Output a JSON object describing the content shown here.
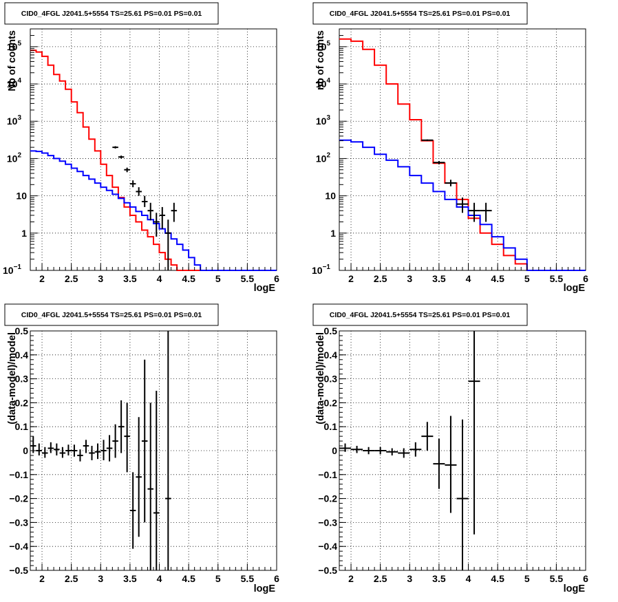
{
  "chart_data": [
    {
      "type": "line",
      "title": "CID0_4FGL J2041.5+5554 TS=25.61 PS=0.01 PS=0.01",
      "xlabel": "logE",
      "ylabel": "Nb of counts",
      "xlim": [
        1.8,
        6.0
      ],
      "ylim": [
        0.1,
        300000
      ],
      "yscale": "log",
      "grid": true,
      "xticks": [
        "2",
        "2.5",
        "3",
        "3.5",
        "4",
        "4.5",
        "5",
        "5.5",
        "6"
      ],
      "yticks": [
        {
          "base": "10",
          "exp": "−1"
        },
        {
          "base": "1",
          "exp": ""
        },
        {
          "base": "10",
          "exp": ""
        },
        {
          "base": "10",
          "exp": "2"
        },
        {
          "base": "10",
          "exp": "3"
        },
        {
          "base": "10",
          "exp": "4"
        },
        {
          "base": "10",
          "exp": "5"
        }
      ],
      "bin_width": 0.1,
      "series": [
        {
          "color": "#ff0000",
          "x": [
            1.85,
            1.95,
            2.05,
            2.15,
            2.25,
            2.35,
            2.45,
            2.55,
            2.65,
            2.75,
            2.85,
            2.95,
            3.05,
            3.15,
            3.25,
            3.35,
            3.45,
            3.55,
            3.65,
            3.75,
            3.85,
            3.95,
            4.05,
            4.15,
            4.25,
            4.35,
            4.45,
            4.55,
            4.65,
            4.75,
            4.85,
            4.95,
            5.05,
            5.15,
            5.25,
            5.35,
            5.45,
            5.55,
            5.65,
            5.75,
            5.85,
            5.95
          ],
          "values": [
            80000,
            72000,
            55000,
            32000,
            18000,
            12000,
            7200,
            3300,
            1700,
            700,
            330,
            160,
            70,
            35,
            17,
            9,
            5,
            3,
            2,
            1.2,
            0.8,
            0.5,
            0.3,
            0.2,
            0.14,
            0.1,
            0.1,
            0.1,
            0.1,
            0.1,
            0.1,
            0.1,
            0.1,
            0.1,
            0.1,
            0.1,
            0.1,
            0.1,
            0.1,
            0.1,
            0.1,
            0.1
          ]
        },
        {
          "color": "#0000ff",
          "x": [
            1.85,
            1.95,
            2.05,
            2.15,
            2.25,
            2.35,
            2.45,
            2.55,
            2.65,
            2.75,
            2.85,
            2.95,
            3.05,
            3.15,
            3.25,
            3.35,
            3.45,
            3.55,
            3.65,
            3.75,
            3.85,
            3.95,
            4.05,
            4.15,
            4.25,
            4.35,
            4.45,
            4.55,
            4.65,
            4.75,
            4.85,
            4.95,
            5.05,
            5.15,
            5.25,
            5.35,
            5.45,
            5.55,
            5.65,
            5.75,
            5.85,
            5.95
          ],
          "values": [
            160,
            155,
            140,
            120,
            100,
            85,
            70,
            55,
            45,
            35,
            28,
            22,
            17,
            14,
            11,
            8.5,
            6.5,
            5,
            3.8,
            3,
            2.3,
            1.8,
            1.3,
            1,
            0.7,
            0.5,
            0.35,
            0.22,
            0.14,
            0.1,
            0.1,
            0.1,
            0.1,
            0.1,
            0.1,
            0.1,
            0.1,
            0.1,
            0.1,
            0.1,
            0.1,
            0.1
          ]
        }
      ],
      "points": [
        {
          "x": 3.25,
          "y": 200,
          "xerr": 0.05,
          "ylo": 186,
          "yhi": 214
        },
        {
          "x": 3.35,
          "y": 110,
          "xerr": 0.05,
          "ylo": 100,
          "yhi": 120
        },
        {
          "x": 3.45,
          "y": 50,
          "xerr": 0.05,
          "ylo": 43,
          "yhi": 57
        },
        {
          "x": 3.55,
          "y": 21,
          "xerr": 0.05,
          "ylo": 17,
          "yhi": 26
        },
        {
          "x": 3.65,
          "y": 13,
          "xerr": 0.05,
          "ylo": 10,
          "yhi": 17
        },
        {
          "x": 3.75,
          "y": 7,
          "xerr": 0.05,
          "ylo": 5,
          "yhi": 10
        },
        {
          "x": 3.85,
          "y": 4,
          "xerr": 0.05,
          "ylo": 2.2,
          "yhi": 6.5
        },
        {
          "x": 3.95,
          "y": 2,
          "xerr": 0.05,
          "ylo": 0.8,
          "yhi": 3.5
        },
        {
          "x": 4.05,
          "y": 3,
          "xerr": 0.05,
          "ylo": 1.3,
          "yhi": 5
        },
        {
          "x": 4.15,
          "y": 1,
          "xerr": 0.05,
          "ylo": 0.1,
          "yhi": 2.3
        },
        {
          "x": 4.25,
          "y": 4,
          "xerr": 0.05,
          "ylo": 2,
          "yhi": 6.5
        }
      ]
    },
    {
      "type": "line",
      "title": "CID0_4FGL J2041.5+5554 TS=25.61 PS=0.01 PS=0.01",
      "xlabel": "logE",
      "ylabel": "nb of counts",
      "xlim": [
        1.8,
        6.0
      ],
      "ylim": [
        0.1,
        300000
      ],
      "yscale": "log",
      "grid": true,
      "xticks": [
        "2",
        "2.5",
        "3",
        "3.5",
        "4",
        "4.5",
        "5",
        "5.5",
        "6"
      ],
      "yticks": [
        {
          "base": "10",
          "exp": "−1"
        },
        {
          "base": "1",
          "exp": ""
        },
        {
          "base": "10",
          "exp": ""
        },
        {
          "base": "10",
          "exp": "2"
        },
        {
          "base": "10",
          "exp": "3"
        },
        {
          "base": "10",
          "exp": "4"
        },
        {
          "base": "10",
          "exp": "5"
        }
      ],
      "bin_width": 0.2,
      "series": [
        {
          "color": "#ff0000",
          "x": [
            1.9,
            2.1,
            2.3,
            2.5,
            2.7,
            2.9,
            3.1,
            3.3,
            3.5,
            3.7,
            3.9,
            4.1,
            4.3,
            4.5,
            4.7,
            4.9,
            5.1,
            5.3,
            5.5,
            5.7,
            5.9
          ],
          "values": [
            160000,
            140000,
            85000,
            32000,
            10000,
            2900,
            1100,
            300,
            75,
            22,
            8,
            2.5,
            1,
            0.5,
            0.25,
            0.15,
            0.1,
            0.1,
            0.1,
            0.1,
            0.1
          ]
        },
        {
          "color": "#0000ff",
          "x": [
            1.9,
            2.1,
            2.3,
            2.5,
            2.7,
            2.9,
            3.1,
            3.3,
            3.5,
            3.7,
            3.9,
            4.1,
            4.3,
            4.5,
            4.7,
            4.9,
            5.1,
            5.3,
            5.5,
            5.7,
            5.9
          ],
          "values": [
            310,
            280,
            200,
            130,
            90,
            60,
            35,
            22,
            13,
            8,
            5,
            3,
            1.7,
            0.8,
            0.4,
            0.2,
            0.1,
            0.1,
            0.1,
            0.1,
            0.1
          ]
        }
      ],
      "points": [
        {
          "x": 3.3,
          "y": 310,
          "xerr": 0.1,
          "ylo": 295,
          "yhi": 325
        },
        {
          "x": 3.5,
          "y": 78,
          "xerr": 0.1,
          "ylo": 70,
          "yhi": 86
        },
        {
          "x": 3.7,
          "y": 22,
          "xerr": 0.1,
          "ylo": 18,
          "yhi": 27
        },
        {
          "x": 3.9,
          "y": 6,
          "xerr": 0.1,
          "ylo": 3.5,
          "yhi": 9
        },
        {
          "x": 4.1,
          "y": 4,
          "xerr": 0.1,
          "ylo": 2,
          "yhi": 6.5
        },
        {
          "x": 4.3,
          "y": 4,
          "xerr": 0.1,
          "ylo": 2,
          "yhi": 6.5
        }
      ]
    },
    {
      "type": "scatter",
      "title": "CID0_4FGL J2041.5+5554 TS=25.61 PS=0.01 PS=0.01",
      "xlabel": "logE",
      "ylabel": "(data-model)/model",
      "xlim": [
        1.8,
        6.0
      ],
      "ylim": [
        -0.5,
        0.5
      ],
      "grid": true,
      "xticks": [
        "2",
        "2.5",
        "3",
        "3.5",
        "4",
        "4.5",
        "5",
        "5.5",
        "6"
      ],
      "yticks": [
        "−0.5",
        "−0.4",
        "−0.3",
        "−0.2",
        "−0.1",
        "0",
        "0.1",
        "0.2",
        "0.3",
        "0.4",
        "0.5"
      ],
      "points": [
        {
          "x": 1.85,
          "y": 0.02,
          "xerr": 0.05,
          "ylo": -0.01,
          "yhi": 0.06
        },
        {
          "x": 1.95,
          "y": 0.0,
          "xerr": 0.05,
          "ylo": -0.02,
          "yhi": 0.03
        },
        {
          "x": 2.05,
          "y": -0.01,
          "xerr": 0.05,
          "ylo": -0.03,
          "yhi": 0.015
        },
        {
          "x": 2.15,
          "y": 0.01,
          "xerr": 0.05,
          "ylo": -0.01,
          "yhi": 0.035
        },
        {
          "x": 2.25,
          "y": 0.005,
          "xerr": 0.05,
          "ylo": -0.02,
          "yhi": 0.03
        },
        {
          "x": 2.35,
          "y": -0.01,
          "xerr": 0.05,
          "ylo": -0.03,
          "yhi": 0.015
        },
        {
          "x": 2.45,
          "y": 0.0,
          "xerr": 0.05,
          "ylo": -0.02,
          "yhi": 0.025
        },
        {
          "x": 2.55,
          "y": 0.0,
          "xerr": 0.05,
          "ylo": -0.025,
          "yhi": 0.025
        },
        {
          "x": 2.65,
          "y": -0.02,
          "xerr": 0.05,
          "ylo": -0.045,
          "yhi": 0.005
        },
        {
          "x": 2.75,
          "y": 0.02,
          "xerr": 0.05,
          "ylo": -0.01,
          "yhi": 0.045
        },
        {
          "x": 2.85,
          "y": -0.01,
          "xerr": 0.05,
          "ylo": -0.04,
          "yhi": 0.02
        },
        {
          "x": 2.95,
          "y": -0.005,
          "xerr": 0.05,
          "ylo": -0.035,
          "yhi": 0.03
        },
        {
          "x": 3.05,
          "y": 0.0,
          "xerr": 0.05,
          "ylo": -0.04,
          "yhi": 0.045
        },
        {
          "x": 3.15,
          "y": 0.01,
          "xerr": 0.05,
          "ylo": -0.045,
          "yhi": 0.065
        },
        {
          "x": 3.25,
          "y": 0.04,
          "xerr": 0.05,
          "ylo": -0.03,
          "yhi": 0.11
        },
        {
          "x": 3.35,
          "y": 0.1,
          "xerr": 0.05,
          "ylo": -0.01,
          "yhi": 0.21
        },
        {
          "x": 3.45,
          "y": 0.06,
          "xerr": 0.05,
          "ylo": -0.09,
          "yhi": 0.2
        },
        {
          "x": 3.55,
          "y": -0.25,
          "xerr": 0.05,
          "ylo": -0.41,
          "yhi": -0.09
        },
        {
          "x": 3.65,
          "y": -0.11,
          "xerr": 0.05,
          "ylo": -0.36,
          "yhi": 0.14
        },
        {
          "x": 3.75,
          "y": 0.04,
          "xerr": 0.05,
          "ylo": -0.3,
          "yhi": 0.38
        },
        {
          "x": 3.85,
          "y": -0.16,
          "xerr": 0.05,
          "ylo": -0.5,
          "yhi": 0.2
        },
        {
          "x": 3.95,
          "y": -0.26,
          "xerr": 0.05,
          "ylo": -0.5,
          "yhi": 0.25
        },
        {
          "x": 4.15,
          "y": -0.2,
          "xerr": 0.05,
          "ylo": -0.5,
          "yhi": 0.5
        }
      ]
    },
    {
      "type": "scatter",
      "title": "CID0_4FGL J2041.5+5554 TS=25.61 PS=0.01 PS=0.01",
      "xlabel": "logE",
      "ylabel": "(data-model)/model",
      "xlim": [
        1.8,
        6.0
      ],
      "ylim": [
        -0.5,
        0.5
      ],
      "grid": true,
      "xticks": [
        "2",
        "2.5",
        "3",
        "3.5",
        "4",
        "4.5",
        "5",
        "5.5",
        "6"
      ],
      "yticks": [
        "−0.5",
        "−0.4",
        "−0.3",
        "−0.2",
        "−0.1",
        "0",
        "0.1",
        "0.2",
        "0.3",
        "0.4",
        "0.5"
      ],
      "points": [
        {
          "x": 1.9,
          "y": 0.01,
          "xerr": 0.1,
          "ylo": -0.005,
          "yhi": 0.03
        },
        {
          "x": 2.1,
          "y": 0.005,
          "xerr": 0.1,
          "ylo": -0.01,
          "yhi": 0.02
        },
        {
          "x": 2.3,
          "y": 0.0,
          "xerr": 0.1,
          "ylo": -0.015,
          "yhi": 0.015
        },
        {
          "x": 2.5,
          "y": 0.0,
          "xerr": 0.1,
          "ylo": -0.015,
          "yhi": 0.015
        },
        {
          "x": 2.7,
          "y": -0.005,
          "xerr": 0.1,
          "ylo": -0.02,
          "yhi": 0.01
        },
        {
          "x": 2.9,
          "y": -0.01,
          "xerr": 0.1,
          "ylo": -0.03,
          "yhi": 0.01
        },
        {
          "x": 3.1,
          "y": 0.005,
          "xerr": 0.1,
          "ylo": -0.025,
          "yhi": 0.035
        },
        {
          "x": 3.3,
          "y": 0.06,
          "xerr": 0.1,
          "ylo": 0.0,
          "yhi": 0.12
        },
        {
          "x": 3.5,
          "y": -0.055,
          "xerr": 0.1,
          "ylo": -0.16,
          "yhi": 0.05
        },
        {
          "x": 3.7,
          "y": -0.06,
          "xerr": 0.1,
          "ylo": -0.26,
          "yhi": 0.145
        },
        {
          "x": 3.9,
          "y": -0.2,
          "xerr": 0.1,
          "ylo": -0.5,
          "yhi": 0.13
        },
        {
          "x": 4.1,
          "y": 0.29,
          "xerr": 0.1,
          "ylo": -0.35,
          "yhi": 0.5
        }
      ]
    }
  ]
}
